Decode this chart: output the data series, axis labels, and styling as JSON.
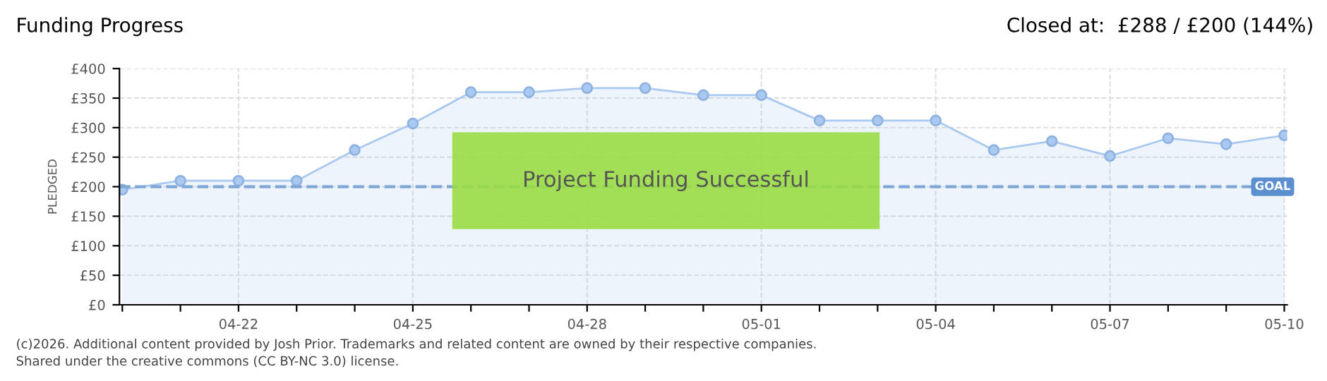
{
  "chart_data": {
    "type": "area",
    "title": "Funding Progress",
    "subtitle": "Closed at:  £288 / £200 (144%)",
    "ylabel": "PLEDGED",
    "categories": [
      null,
      null,
      "04-22",
      null,
      null,
      "04-25",
      null,
      null,
      "04-28",
      null,
      null,
      "05-01",
      null,
      null,
      "05-04",
      null,
      null,
      "05-07",
      null,
      null,
      "05-10"
    ],
    "series": [
      {
        "color": "#a9c9f0",
        "values": [
          195,
          210,
          210,
          210,
          262,
          307,
          360,
          360,
          367,
          367,
          355,
          355,
          312,
          312,
          312,
          262,
          277,
          252,
          282,
          272,
          287
        ]
      }
    ],
    "ylim": [
      0,
      400
    ],
    "yticks": [
      {
        "value": 0,
        "label": "£0"
      },
      {
        "value": 50,
        "label": "£50"
      },
      {
        "value": 100,
        "label": "£100"
      },
      {
        "value": 150,
        "label": "£150"
      },
      {
        "value": 200,
        "label": "£200"
      },
      {
        "value": 250,
        "label": "£250"
      },
      {
        "value": 300,
        "label": "£300"
      },
      {
        "value": 350,
        "label": "£350"
      },
      {
        "value": 400,
        "label": "£400"
      }
    ],
    "ref_lines": [
      {
        "axis": "y",
        "value": 200,
        "label": "GOAL",
        "color": "#7fa6d6",
        "line_style": "dashed"
      }
    ],
    "annotations": [
      "Project Funding Successful",
      "(c)2026. Additional content provided by Josh Prior. Trademarks and related content are owned by their respective companies.",
      "Shared under the creative commons (CC BY-NC 3.0) license."
    ],
    "grid": true,
    "marker": "circle"
  }
}
